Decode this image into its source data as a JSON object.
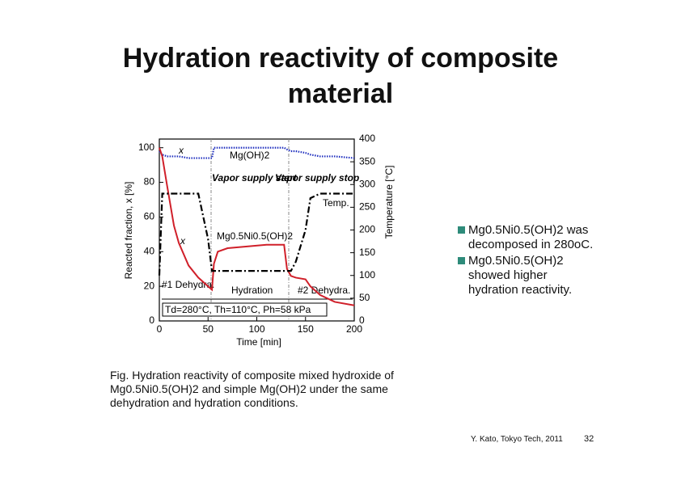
{
  "title": "Hydration reactivity of composite material",
  "chart_data": {
    "type": "line",
    "xlabel": "Time [min]",
    "ylabel": "Reacted fraction, x [%]",
    "y2label": "Temperature [°C]",
    "x": [
      0,
      3,
      8,
      15,
      20,
      30,
      40,
      50,
      54,
      56,
      60,
      70,
      90,
      110,
      128,
      131,
      135,
      140,
      150,
      155,
      165,
      180,
      200
    ],
    "xlim": [
      0,
      200
    ],
    "xticks": [
      0,
      50,
      100,
      150,
      200
    ],
    "ylim": [
      0,
      105
    ],
    "yticks": [
      0,
      20,
      40,
      60,
      80,
      100
    ],
    "y2lim": [
      0,
      400
    ],
    "y2ticks": [
      0,
      50,
      100,
      150,
      200,
      250,
      300,
      350,
      400
    ],
    "series": [
      {
        "name": "Mg(OH)2",
        "color": "#1f2fbf",
        "style": "dotted",
        "values": [
          98,
          96,
          95,
          95,
          95,
          94,
          94,
          94,
          94,
          100,
          100,
          100,
          100,
          100,
          100,
          99,
          98,
          98,
          97,
          96,
          95,
          95,
          94
        ]
      },
      {
        "name": "Mg0.5Ni0.5(OH)2",
        "color": "#d0202a",
        "style": "solid",
        "values": [
          100,
          95,
          78,
          55,
          45,
          32,
          25,
          20,
          18,
          33,
          40,
          42,
          43,
          44,
          44,
          30,
          26,
          25,
          24,
          20,
          15,
          11,
          9
        ]
      },
      {
        "name": "Temp.",
        "color": "#000000",
        "style": "dashdot",
        "axis": "y2",
        "values": [
          100,
          280,
          280,
          280,
          280,
          280,
          280,
          180,
          110,
          110,
          110,
          110,
          110,
          110,
          110,
          110,
          110,
          130,
          200,
          270,
          280,
          280,
          280
        ]
      }
    ],
    "annotations": [
      "x",
      "x",
      "Vapor supply start",
      "Vapor supply stop",
      "#1 Dehydra.",
      "Hydration",
      "#2 Dehydra.",
      "Td=280°C, Th=110°C, Ph=58 kPa"
    ]
  },
  "bullets": [
    "Mg0.5Ni0.5(OH)2 was decomposed in 280oC.",
    "Mg0.5Ni0.5(OH)2 showed higher hydration reactivity."
  ],
  "caption": "Fig. Hydration reactivity of composite mixed hydroxide of Mg0.5Ni0.5(OH)2 and simple Mg(OH)2 under the same dehydration and hydration conditions.",
  "footer": "Y. Kato, Tokyo Tech, 2011",
  "page": "32"
}
